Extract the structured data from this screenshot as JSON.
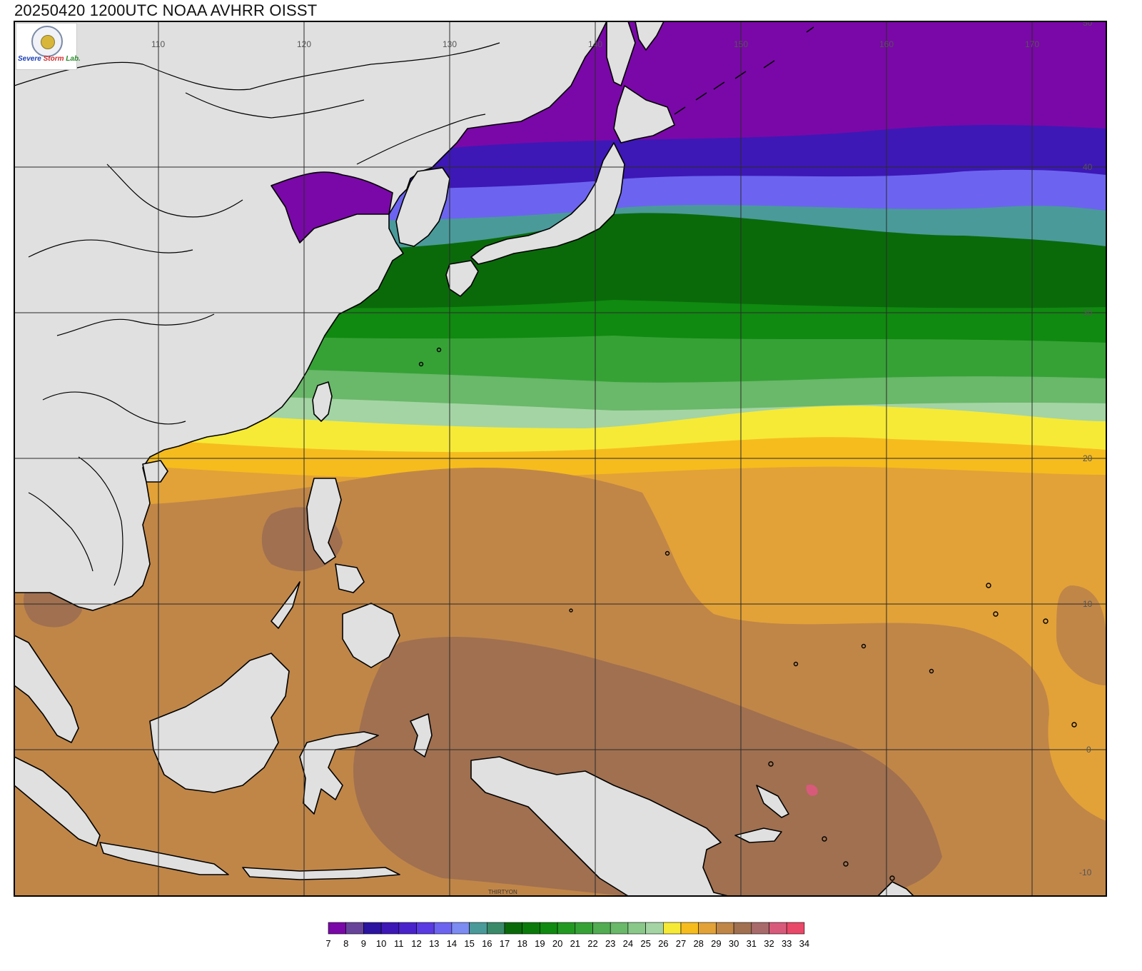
{
  "title": "20250420 1200UTC NOAA AVHRR OISST",
  "logo": {
    "part1": "Severe",
    "part2": "Storm",
    "part3": "Lab."
  },
  "lon_labels": [
    "110",
    "120",
    "130",
    "140",
    "150",
    "160",
    "170"
  ],
  "lat_labels": [
    "50",
    "40",
    "30",
    "20",
    "10",
    "0",
    "-10"
  ],
  "land_caption": "THIRTYON",
  "colorbar": {
    "labels": [
      "7",
      "8",
      "9",
      "10",
      "11",
      "12",
      "13",
      "14",
      "15",
      "16",
      "17",
      "18",
      "19",
      "20",
      "21",
      "22",
      "23",
      "24",
      "25",
      "26",
      "27",
      "28",
      "29",
      "30",
      "31",
      "32",
      "33",
      "34"
    ],
    "colors": [
      "#7a08a8",
      "#67449a",
      "#2c14a0",
      "#3d18b6",
      "#4a22cc",
      "#5a3ae2",
      "#6c64f0",
      "#7c8cf2",
      "#4a9a9a",
      "#3a8a6a",
      "#0a6a0a",
      "#0a7a0a",
      "#108a10",
      "#229a22",
      "#36a236",
      "#52ac52",
      "#6ab86a",
      "#8ac88a",
      "#a4d4a4",
      "#f6ea36",
      "#f6bc1e",
      "#e2a238",
      "#c08648",
      "#a07050",
      "#a86a6a",
      "#d85a7a",
      "#ea4868"
    ]
  },
  "colors": {
    "land": "#e0e0e0",
    "coast": "#000000",
    "grid": "#2a2a2a",
    "frame": "#000000"
  }
}
